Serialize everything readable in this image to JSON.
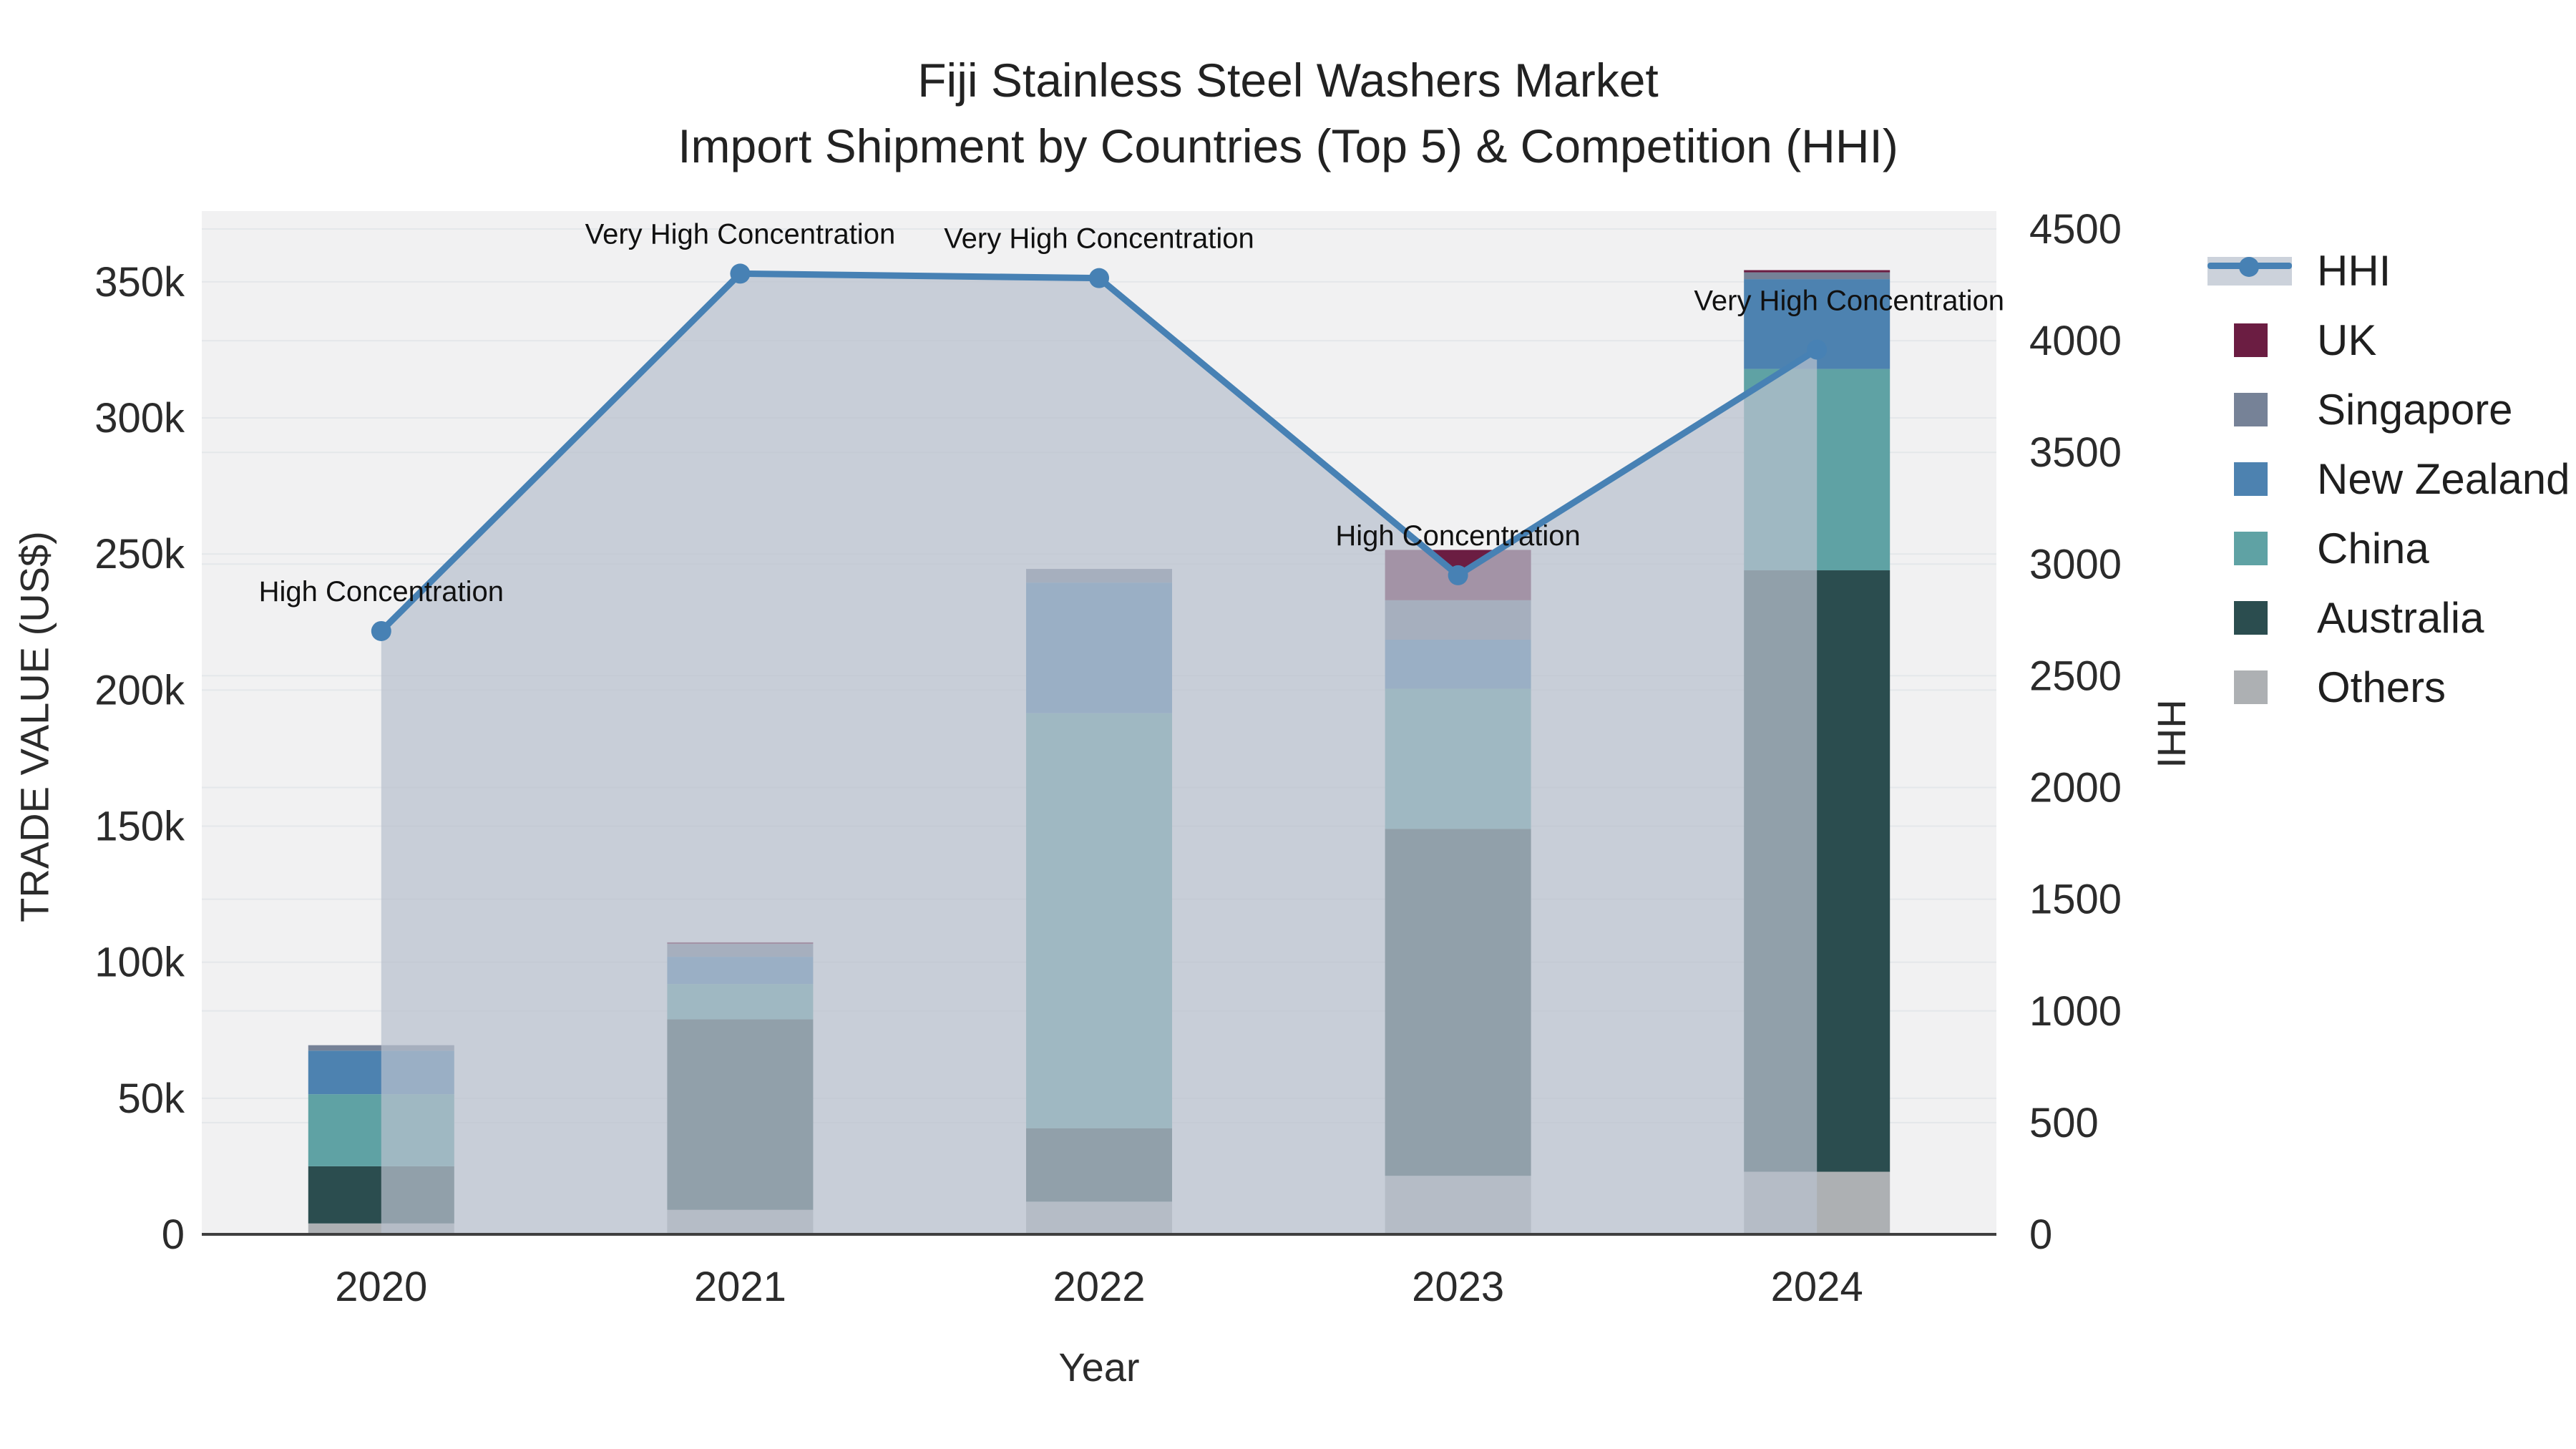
{
  "title": {
    "line1": "Fiji Stainless Steel Washers Market",
    "line2": "Import Shipment by Countries (Top 5) & Competition (HHI)"
  },
  "axes": {
    "y_left": {
      "title": "TRADE VALUE (US$)",
      "tick_labels": [
        "0",
        "50k",
        "100k",
        "150k",
        "200k",
        "250k",
        "300k",
        "350k"
      ],
      "tick_values_usd_k": [
        0,
        50,
        100,
        150,
        200,
        250,
        300,
        350
      ],
      "range_usd_k": [
        0,
        376
      ]
    },
    "y_right": {
      "title": "HHI",
      "tick_labels": [
        "0",
        "500",
        "1000",
        "1500",
        "2000",
        "2500",
        "3000",
        "3500",
        "4000",
        "4500"
      ],
      "tick_values": [
        0,
        500,
        1000,
        1500,
        2000,
        2500,
        3000,
        3500,
        4000,
        4500
      ],
      "range": [
        0,
        4580
      ]
    },
    "x": {
      "title": "Year",
      "categories": [
        "2020",
        "2021",
        "2022",
        "2023",
        "2024"
      ]
    }
  },
  "legend": {
    "items": [
      {
        "key": "hhi",
        "label": "HHI",
        "type": "line",
        "color": "#4781b4"
      },
      {
        "key": "uk",
        "label": "UK",
        "type": "square",
        "color": "#6b1d42"
      },
      {
        "key": "singapore",
        "label": "Singapore",
        "type": "square",
        "color": "#768297"
      },
      {
        "key": "new-zealand",
        "label": "New Zealand",
        "type": "square",
        "color": "#4d82b0"
      },
      {
        "key": "china",
        "label": "China",
        "type": "square",
        "color": "#5fa2a4"
      },
      {
        "key": "australia",
        "label": "Australia",
        "type": "square",
        "color": "#2b4d4f"
      },
      {
        "key": "others",
        "label": "Others",
        "type": "square",
        "color": "#adb0b3"
      }
    ]
  },
  "chart_data": [
    {
      "type": "bar",
      "stacked": true,
      "categories": [
        "2020",
        "2021",
        "2022",
        "2023",
        "2024"
      ],
      "unit": "US$ thousands",
      "ylabel": "TRADE VALUE (US$)",
      "ylim_usd_k": [
        0,
        376
      ],
      "series": [
        {
          "name": "Others",
          "color": "#adb0b3",
          "values": [
            4,
            9,
            12,
            21.5,
            23
          ]
        },
        {
          "name": "Australia",
          "color": "#2b4d4f",
          "values": [
            21,
            70,
            27,
            127.5,
            221
          ]
        },
        {
          "name": "China",
          "color": "#5fa2a4",
          "values": [
            26.5,
            13,
            152.5,
            51.5,
            74
          ]
        },
        {
          "name": "New Zealand",
          "color": "#4d82b0",
          "values": [
            16,
            10,
            48,
            18,
            33
          ]
        },
        {
          "name": "Singapore",
          "color": "#768297",
          "values": [
            2,
            4.7,
            5,
            14.5,
            2.5
          ]
        },
        {
          "name": "UK",
          "color": "#6b1d42",
          "values": [
            0,
            0.6,
            0,
            18.5,
            0.8
          ]
        }
      ]
    },
    {
      "type": "line",
      "name": "HHI",
      "x": [
        "2020",
        "2021",
        "2022",
        "2023",
        "2024"
      ],
      "values": [
        2700,
        4300,
        4280,
        2950,
        3960
      ],
      "ylabel": "HHI",
      "ylim": [
        0,
        4580
      ],
      "area_fill": true,
      "legend_position": "right-outside",
      "annotations": [
        {
          "x": "2020",
          "text": "High Concentration"
        },
        {
          "x": "2021",
          "text": "Very High Concentration"
        },
        {
          "x": "2022",
          "text": "Very High Concentration"
        },
        {
          "x": "2023",
          "text": "High Concentration"
        },
        {
          "x": "2024",
          "text": "Very High Concentration"
        }
      ]
    }
  ],
  "colors": {
    "plot_bg": "#f1f1f2",
    "grid": "#e4e7ea",
    "axis_line": "#3f3f3f",
    "area_fill": "rgba(185,193,205,0.72)",
    "hhi_line": "#4781b4",
    "text": "#2b2b2b"
  }
}
